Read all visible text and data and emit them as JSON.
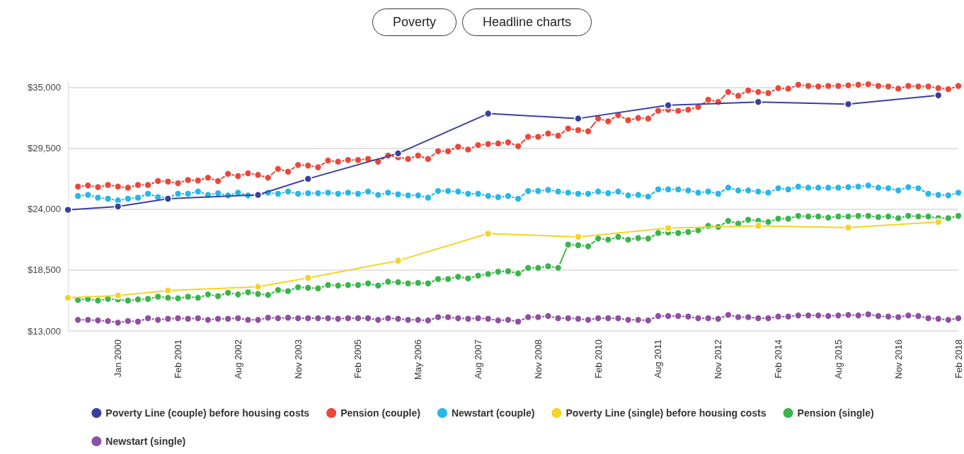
{
  "chart_data": {
    "type": "line",
    "annotations": [
      "Poverty",
      "Headline charts"
    ],
    "categories": [
      null,
      null,
      null,
      null,
      null,
      "Jan 2000",
      null,
      null,
      null,
      null,
      null,
      "Feb 2001",
      null,
      null,
      null,
      null,
      null,
      "Aug 2002",
      null,
      null,
      null,
      null,
      null,
      "Nov 2003",
      null,
      null,
      null,
      null,
      null,
      "Feb 2005",
      null,
      null,
      null,
      null,
      null,
      "May 2006",
      null,
      null,
      null,
      null,
      null,
      "Aug 2007",
      null,
      null,
      null,
      null,
      null,
      "Nov 2008",
      null,
      null,
      null,
      null,
      null,
      "Feb 2010",
      null,
      null,
      null,
      null,
      null,
      "Aug 2011",
      null,
      null,
      null,
      null,
      null,
      "Nov 2012",
      null,
      null,
      null,
      null,
      null,
      "Feb 2014",
      null,
      null,
      null,
      null,
      null,
      "Aug 2015",
      null,
      null,
      null,
      null,
      null,
      "Nov 2016",
      null,
      null,
      null,
      null,
      null,
      "Feb 2018"
    ],
    "series": [
      {
        "name": "Poverty Line (couple) before housing costs",
        "color": "#3a3f9e",
        "values": [
          23950,
          null,
          null,
          null,
          null,
          24250,
          null,
          null,
          null,
          null,
          24950,
          null,
          null,
          null,
          null,
          null,
          null,
          null,
          null,
          25300,
          null,
          null,
          null,
          null,
          26750,
          null,
          null,
          null,
          null,
          null,
          null,
          null,
          null,
          29050,
          null,
          null,
          null,
          null,
          null,
          null,
          null,
          null,
          32650,
          null,
          null,
          null,
          null,
          null,
          null,
          null,
          null,
          32200,
          null,
          null,
          null,
          null,
          null,
          null,
          null,
          null,
          33400,
          null,
          null,
          null,
          null,
          null,
          null,
          null,
          null,
          33700,
          null,
          null,
          null,
          null,
          null,
          null,
          null,
          null,
          33500,
          null,
          null,
          null,
          null,
          null,
          null,
          null,
          null,
          34300,
          null,
          null
        ]
      },
      {
        "name": "Pension (couple)",
        "color": "#e8483a",
        "values": [
          null,
          26050,
          26150,
          26000,
          26200,
          26050,
          25950,
          26200,
          26200,
          26550,
          26500,
          26350,
          26650,
          26600,
          26850,
          26550,
          27200,
          27000,
          27250,
          27100,
          26850,
          27650,
          27400,
          28000,
          27950,
          27800,
          28400,
          28300,
          28450,
          28450,
          28550,
          28300,
          28850,
          28700,
          28550,
          28850,
          28550,
          29250,
          29250,
          29650,
          29400,
          29800,
          29900,
          29950,
          30050,
          29700,
          30550,
          30550,
          30850,
          30650,
          31300,
          31150,
          31050,
          32200,
          31950,
          32500,
          32050,
          32250,
          32200,
          32900,
          33000,
          32900,
          33000,
          33250,
          33900,
          33700,
          34600,
          34250,
          34750,
          34600,
          34500,
          34950,
          34900,
          35250,
          35150,
          35100,
          35150,
          35150,
          35200,
          35250,
          35300,
          35150,
          35100,
          34900,
          35150,
          35100,
          35100,
          34950,
          34850,
          35150
        ]
      },
      {
        "name": "Newstart (couple)",
        "color": "#29b6e8",
        "values": [
          null,
          25200,
          25300,
          25050,
          24950,
          24800,
          24950,
          25050,
          25400,
          25100,
          25050,
          25400,
          25400,
          25600,
          25300,
          25450,
          25250,
          25500,
          25250,
          25250,
          25500,
          25400,
          25600,
          25400,
          25450,
          25450,
          25500,
          25400,
          25500,
          25400,
          25600,
          25300,
          25500,
          25350,
          25250,
          25250,
          25050,
          25650,
          25650,
          25600,
          25400,
          25400,
          25200,
          25100,
          25200,
          24950,
          25650,
          25650,
          25750,
          25600,
          25500,
          25400,
          25400,
          25600,
          25450,
          25600,
          25250,
          25300,
          25150,
          25800,
          25800,
          25800,
          25700,
          25500,
          25600,
          25400,
          25950,
          25700,
          25700,
          25600,
          25500,
          25900,
          25800,
          26050,
          25950,
          25950,
          25950,
          25950,
          26000,
          26050,
          26150,
          25950,
          25900,
          25700,
          26000,
          25900,
          25400,
          25300,
          25250,
          25500
        ]
      },
      {
        "name": "Poverty Line (single) before housing costs",
        "color": "#f5d327",
        "values": [
          16000,
          null,
          null,
          null,
          null,
          16200,
          null,
          null,
          null,
          null,
          16650,
          null,
          null,
          null,
          null,
          null,
          null,
          null,
          null,
          17000,
          null,
          null,
          null,
          null,
          17800,
          null,
          null,
          null,
          null,
          null,
          null,
          null,
          null,
          19350,
          null,
          null,
          null,
          null,
          null,
          null,
          null,
          null,
          21800,
          null,
          null,
          null,
          null,
          null,
          null,
          null,
          null,
          21500,
          null,
          null,
          null,
          null,
          null,
          null,
          null,
          null,
          22300,
          null,
          null,
          null,
          null,
          null,
          null,
          null,
          null,
          22500,
          null,
          null,
          null,
          null,
          null,
          null,
          null,
          null,
          22350,
          null,
          null,
          null,
          null,
          null,
          null,
          null,
          null,
          22850,
          null,
          null
        ]
      },
      {
        "name": "Pension (single)",
        "color": "#3ab54a",
        "values": [
          null,
          15800,
          15900,
          15750,
          15900,
          15850,
          15750,
          15850,
          15900,
          16100,
          16000,
          15950,
          16100,
          16000,
          16300,
          16150,
          16450,
          16300,
          16500,
          16350,
          16250,
          16700,
          16600,
          16950,
          16900,
          16850,
          17150,
          17100,
          17150,
          17150,
          17300,
          17100,
          17450,
          17400,
          17300,
          17350,
          17300,
          17700,
          17700,
          17900,
          17750,
          18000,
          18150,
          18350,
          18400,
          18200,
          18700,
          18700,
          18850,
          18700,
          20800,
          20750,
          20650,
          21350,
          21250,
          21500,
          21250,
          21400,
          21350,
          21850,
          21900,
          21850,
          21950,
          22100,
          22500,
          22400,
          22950,
          22700,
          23050,
          22950,
          22850,
          23150,
          23150,
          23400,
          23350,
          23350,
          23250,
          23350,
          23350,
          23400,
          23400,
          23300,
          23350,
          23200,
          23400,
          23350,
          23350,
          23200,
          23200,
          23400
        ]
      },
      {
        "name": "Newstart (single)",
        "color": "#8e4fa3",
        "values": [
          null,
          14000,
          14000,
          13950,
          13900,
          13750,
          13900,
          13850,
          14150,
          14000,
          14100,
          14150,
          14100,
          14150,
          14000,
          14100,
          14100,
          14150,
          14000,
          14000,
          14200,
          14150,
          14200,
          14150,
          14150,
          14150,
          14150,
          14100,
          14150,
          14150,
          14150,
          14000,
          14150,
          14100,
          14000,
          14000,
          13950,
          14250,
          14250,
          14150,
          14100,
          14150,
          14100,
          13950,
          14000,
          13850,
          14250,
          14250,
          14350,
          14150,
          14150,
          14100,
          14000,
          14150,
          14150,
          14150,
          14000,
          14000,
          13950,
          14350,
          14350,
          14350,
          14300,
          14150,
          14150,
          14100,
          14450,
          14250,
          14250,
          14150,
          14150,
          14300,
          14300,
          14400,
          14400,
          14400,
          14350,
          14400,
          14450,
          14400,
          14500,
          14350,
          14300,
          14250,
          14400,
          14350,
          14150,
          14100,
          14000,
          14150
        ]
      }
    ],
    "ylim": [
      13000,
      35500
    ],
    "yticks": [
      {
        "value": 13000,
        "label": "$13,000"
      },
      {
        "value": 18500,
        "label": "$18,500"
      },
      {
        "value": 24000,
        "label": "$24,000"
      },
      {
        "value": 29500,
        "label": "$29,500"
      },
      {
        "value": 35000,
        "label": "$35,000"
      }
    ],
    "grid": "y",
    "legend": "bottom",
    "marker": "circle",
    "line_style": "solid"
  }
}
